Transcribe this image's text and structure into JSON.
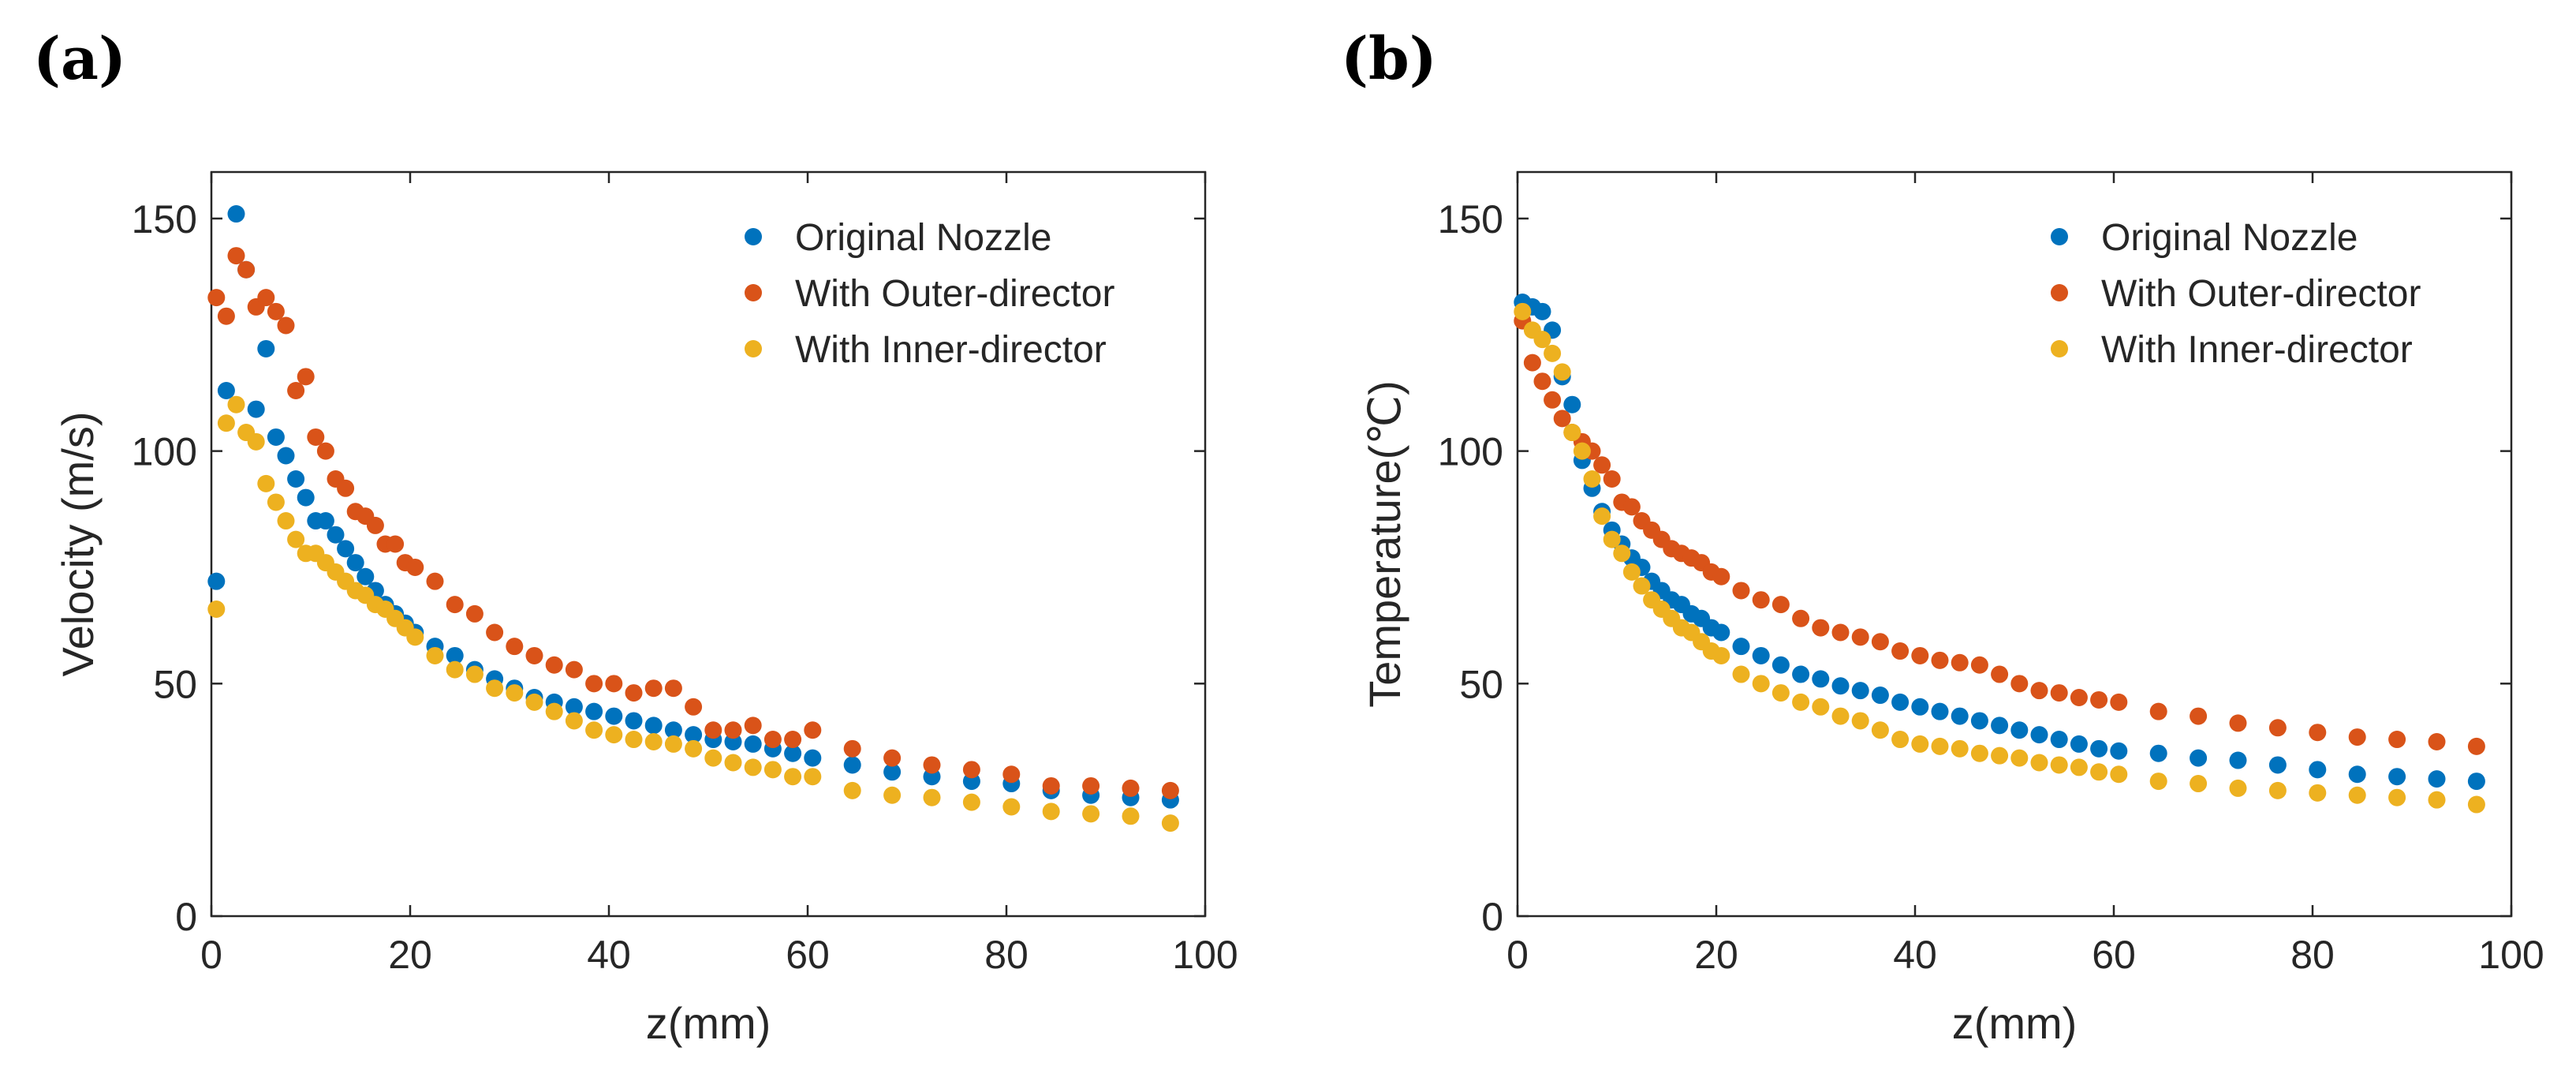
{
  "colors": {
    "original": "#0072BD",
    "outer": "#D95319",
    "inner": "#EDB120",
    "axis": "#262626"
  },
  "chart_data": [
    {
      "type": "scatter",
      "panel_label": "(a)",
      "xlabel": "z(mm)",
      "ylabel": "Velocity (m/s)",
      "xlim": [
        0,
        100
      ],
      "ylim": [
        0,
        160
      ],
      "xticks": [
        0,
        20,
        40,
        60,
        80,
        100
      ],
      "xtick_labels": [
        "0",
        "20",
        "40",
        "60",
        "80",
        "100"
      ],
      "yticks": [
        0,
        50,
        100,
        150
      ],
      "ytick_labels": [
        "0",
        "50",
        "100",
        "150"
      ],
      "grid": false,
      "legend_position": "top-right",
      "series": [
        {
          "name": "Original Nozzle",
          "color_key": "original",
          "x": [
            0.5,
            1.5,
            2.5,
            3.5,
            4.5,
            5.5,
            6.5,
            7.5,
            8.5,
            9.5,
            10.5,
            11.5,
            12.5,
            13.5,
            14.5,
            15.5,
            16.5,
            17.5,
            18.5,
            19.5,
            20.5,
            22.5,
            24.5,
            26.5,
            28.5,
            30.5,
            32.5,
            34.5,
            36.5,
            38.5,
            40.5,
            42.5,
            44.5,
            46.5,
            48.5,
            50.5,
            52.5,
            54.5,
            56.5,
            58.5,
            60.5,
            64.5,
            68.5,
            72.5,
            76.5,
            80.5,
            84.5,
            88.5,
            92.5,
            96.5
          ],
          "y": [
            72,
            113,
            151,
            139,
            109,
            122,
            103,
            99,
            94,
            90,
            85,
            85,
            82,
            79,
            76,
            73,
            70,
            67,
            65,
            63,
            61,
            58,
            56,
            53,
            51,
            49,
            47,
            46,
            45,
            44,
            43,
            42,
            41,
            40,
            39,
            38,
            37.5,
            37,
            36,
            35,
            34,
            32.5,
            31,
            30,
            29,
            28.5,
            27,
            26,
            25.5,
            25
          ]
        },
        {
          "name": "With Outer-director",
          "color_key": "outer",
          "x": [
            0.5,
            1.5,
            2.5,
            3.5,
            4.5,
            5.5,
            6.5,
            7.5,
            8.5,
            9.5,
            10.5,
            11.5,
            12.5,
            13.5,
            14.5,
            15.5,
            16.5,
            17.5,
            18.5,
            19.5,
            20.5,
            22.5,
            24.5,
            26.5,
            28.5,
            30.5,
            32.5,
            34.5,
            36.5,
            38.5,
            40.5,
            42.5,
            44.5,
            46.5,
            48.5,
            50.5,
            52.5,
            54.5,
            56.5,
            58.5,
            60.5,
            64.5,
            68.5,
            72.5,
            76.5,
            80.5,
            84.5,
            88.5,
            92.5,
            96.5
          ],
          "y": [
            133,
            129,
            142,
            139,
            131,
            133,
            130,
            127,
            113,
            116,
            103,
            100,
            94,
            92,
            87,
            86,
            84,
            80,
            80,
            76,
            75,
            72,
            67,
            65,
            61,
            58,
            56,
            54,
            53,
            50,
            50,
            48,
            49,
            49,
            45,
            40,
            40,
            41,
            38,
            38,
            40,
            36,
            34,
            32.5,
            31.5,
            30.5,
            28,
            28,
            27.5,
            27
          ]
        },
        {
          "name": "With Inner-director",
          "color_key": "inner",
          "x": [
            0.5,
            1.5,
            2.5,
            3.5,
            4.5,
            5.5,
            6.5,
            7.5,
            8.5,
            9.5,
            10.5,
            11.5,
            12.5,
            13.5,
            14.5,
            15.5,
            16.5,
            17.5,
            18.5,
            19.5,
            20.5,
            22.5,
            24.5,
            26.5,
            28.5,
            30.5,
            32.5,
            34.5,
            36.5,
            38.5,
            40.5,
            42.5,
            44.5,
            46.5,
            48.5,
            50.5,
            52.5,
            54.5,
            56.5,
            58.5,
            60.5,
            64.5,
            68.5,
            72.5,
            76.5,
            80.5,
            84.5,
            88.5,
            92.5,
            96.5
          ],
          "y": [
            66,
            106,
            110,
            104,
            102,
            93,
            89,
            85,
            81,
            78,
            78,
            76,
            74,
            72,
            70,
            69,
            67,
            66,
            64,
            62,
            60,
            56,
            53,
            52,
            49,
            48,
            46,
            44,
            42,
            40,
            39,
            38,
            37.5,
            37,
            36,
            34,
            33,
            32,
            31.5,
            30,
            30,
            27,
            26,
            25.5,
            24.5,
            23.5,
            22.5,
            22,
            21.5,
            20
          ]
        }
      ]
    },
    {
      "type": "scatter",
      "panel_label": "(b)",
      "xlabel": "z(mm)",
      "ylabel": "Temperature(℃)",
      "xlim": [
        0,
        100
      ],
      "ylim": [
        0,
        160
      ],
      "xticks": [
        0,
        20,
        40,
        60,
        80,
        100
      ],
      "xtick_labels": [
        "0",
        "20",
        "40",
        "60",
        "80",
        "100"
      ],
      "yticks": [
        0,
        50,
        100,
        150
      ],
      "ytick_labels": [
        "0",
        "50",
        "100",
        "150"
      ],
      "grid": false,
      "legend_position": "top-right",
      "series": [
        {
          "name": "Original Nozzle",
          "color_key": "original",
          "x": [
            0.5,
            1.5,
            2.5,
            3.5,
            4.5,
            5.5,
            6.5,
            7.5,
            8.5,
            9.5,
            10.5,
            11.5,
            12.5,
            13.5,
            14.5,
            15.5,
            16.5,
            17.5,
            18.5,
            19.5,
            20.5,
            22.5,
            24.5,
            26.5,
            28.5,
            30.5,
            32.5,
            34.5,
            36.5,
            38.5,
            40.5,
            42.5,
            44.5,
            46.5,
            48.5,
            50.5,
            52.5,
            54.5,
            56.5,
            58.5,
            60.5,
            64.5,
            68.5,
            72.5,
            76.5,
            80.5,
            84.5,
            88.5,
            92.5,
            96.5
          ],
          "y": [
            132,
            131,
            130,
            126,
            116,
            110,
            98,
            92,
            87,
            83,
            80,
            77,
            75,
            72,
            70,
            68,
            67,
            65,
            64,
            62,
            61,
            58,
            56,
            54,
            52,
            51,
            49.5,
            48.5,
            47.5,
            46,
            45,
            44,
            43,
            42,
            41,
            40,
            39,
            38,
            37,
            36,
            35.5,
            35,
            34,
            33.5,
            32.5,
            31.5,
            30.5,
            30,
            29.5,
            29
          ]
        },
        {
          "name": "With Outer-director",
          "color_key": "outer",
          "x": [
            0.5,
            1.5,
            2.5,
            3.5,
            4.5,
            5.5,
            6.5,
            7.5,
            8.5,
            9.5,
            10.5,
            11.5,
            12.5,
            13.5,
            14.5,
            15.5,
            16.5,
            17.5,
            18.5,
            19.5,
            20.5,
            22.5,
            24.5,
            26.5,
            28.5,
            30.5,
            32.5,
            34.5,
            36.5,
            38.5,
            40.5,
            42.5,
            44.5,
            46.5,
            48.5,
            50.5,
            52.5,
            54.5,
            56.5,
            58.5,
            60.5,
            64.5,
            68.5,
            72.5,
            76.5,
            80.5,
            84.5,
            88.5,
            92.5,
            96.5
          ],
          "y": [
            128,
            119,
            115,
            111,
            107,
            104,
            102,
            100,
            97,
            94,
            89,
            88,
            85,
            83,
            81,
            79,
            78,
            77,
            76,
            74,
            73,
            70,
            68,
            67,
            64,
            62,
            61,
            60,
            59,
            57,
            56,
            55,
            54.5,
            54,
            52,
            50,
            48.5,
            48,
            47,
            46.5,
            46,
            44,
            43,
            41.5,
            40.5,
            39.5,
            38.5,
            38,
            37.5,
            36.5
          ]
        },
        {
          "name": "With Inner-director",
          "color_key": "inner",
          "x": [
            0.5,
            1.5,
            2.5,
            3.5,
            4.5,
            5.5,
            6.5,
            7.5,
            8.5,
            9.5,
            10.5,
            11.5,
            12.5,
            13.5,
            14.5,
            15.5,
            16.5,
            17.5,
            18.5,
            19.5,
            20.5,
            22.5,
            24.5,
            26.5,
            28.5,
            30.5,
            32.5,
            34.5,
            36.5,
            38.5,
            40.5,
            42.5,
            44.5,
            46.5,
            48.5,
            50.5,
            52.5,
            54.5,
            56.5,
            58.5,
            60.5,
            64.5,
            68.5,
            72.5,
            76.5,
            80.5,
            84.5,
            88.5,
            92.5,
            96.5
          ],
          "y": [
            130,
            126,
            124,
            121,
            117,
            104,
            100,
            94,
            86,
            81,
            78,
            74,
            71,
            68,
            66,
            64,
            62,
            61,
            59,
            57,
            56,
            52,
            50,
            48,
            46,
            45,
            43,
            42,
            40,
            38,
            37,
            36.5,
            36,
            35,
            34.5,
            34,
            33,
            32.5,
            32,
            31,
            30.5,
            29,
            28.5,
            27.5,
            27,
            26.5,
            26,
            25.5,
            25,
            24
          ]
        }
      ]
    }
  ]
}
